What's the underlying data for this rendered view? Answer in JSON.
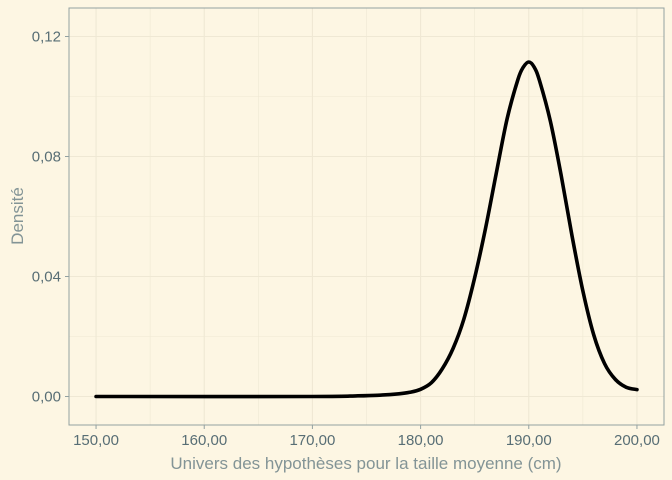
{
  "chart_data": {
    "type": "line",
    "xlabel": "Univers des hypothèses pour la taille moyenne (cm)",
    "ylabel": "Densité",
    "xlim": [
      147.5,
      202.5
    ],
    "ylim": [
      -0.0095,
      0.1295
    ],
    "x_ticks": [
      150,
      160,
      170,
      180,
      190,
      200
    ],
    "x_tick_labels": [
      "150,00",
      "160,00",
      "170,00",
      "180,00",
      "190,00",
      "200,00"
    ],
    "y_ticks": [
      0,
      0.04,
      0.08,
      0.12
    ],
    "y_tick_labels": [
      "0,00",
      "0,04",
      "0,08",
      "0,12"
    ],
    "grid": true,
    "legend": "none",
    "series": [
      {
        "x": [
          150,
          170,
          174,
          176,
          178,
          179,
          180,
          181,
          182,
          183,
          184,
          185,
          186,
          187,
          188,
          189,
          189.5,
          190,
          190.5,
          191,
          192,
          193,
          194,
          195,
          196,
          197,
          198,
          199,
          200
        ],
        "values": [
          0.0,
          0.0,
          0.0002,
          0.0004,
          0.0009,
          0.0014,
          0.0024,
          0.0046,
          0.0092,
          0.016,
          0.0258,
          0.0396,
          0.056,
          0.0745,
          0.0926,
          0.1057,
          0.1098,
          0.1115,
          0.1098,
          0.1052,
          0.0917,
          0.0736,
          0.0535,
          0.0352,
          0.0206,
          0.011,
          0.0057,
          0.0031,
          0.0023
        ]
      }
    ],
    "colors": {
      "background": "#fdf6e3",
      "line": "#000000",
      "grid": "#efe8d4",
      "axis_frame": "#93a1a1",
      "tick_text": "#586e75",
      "title_text": "#839496"
    }
  }
}
